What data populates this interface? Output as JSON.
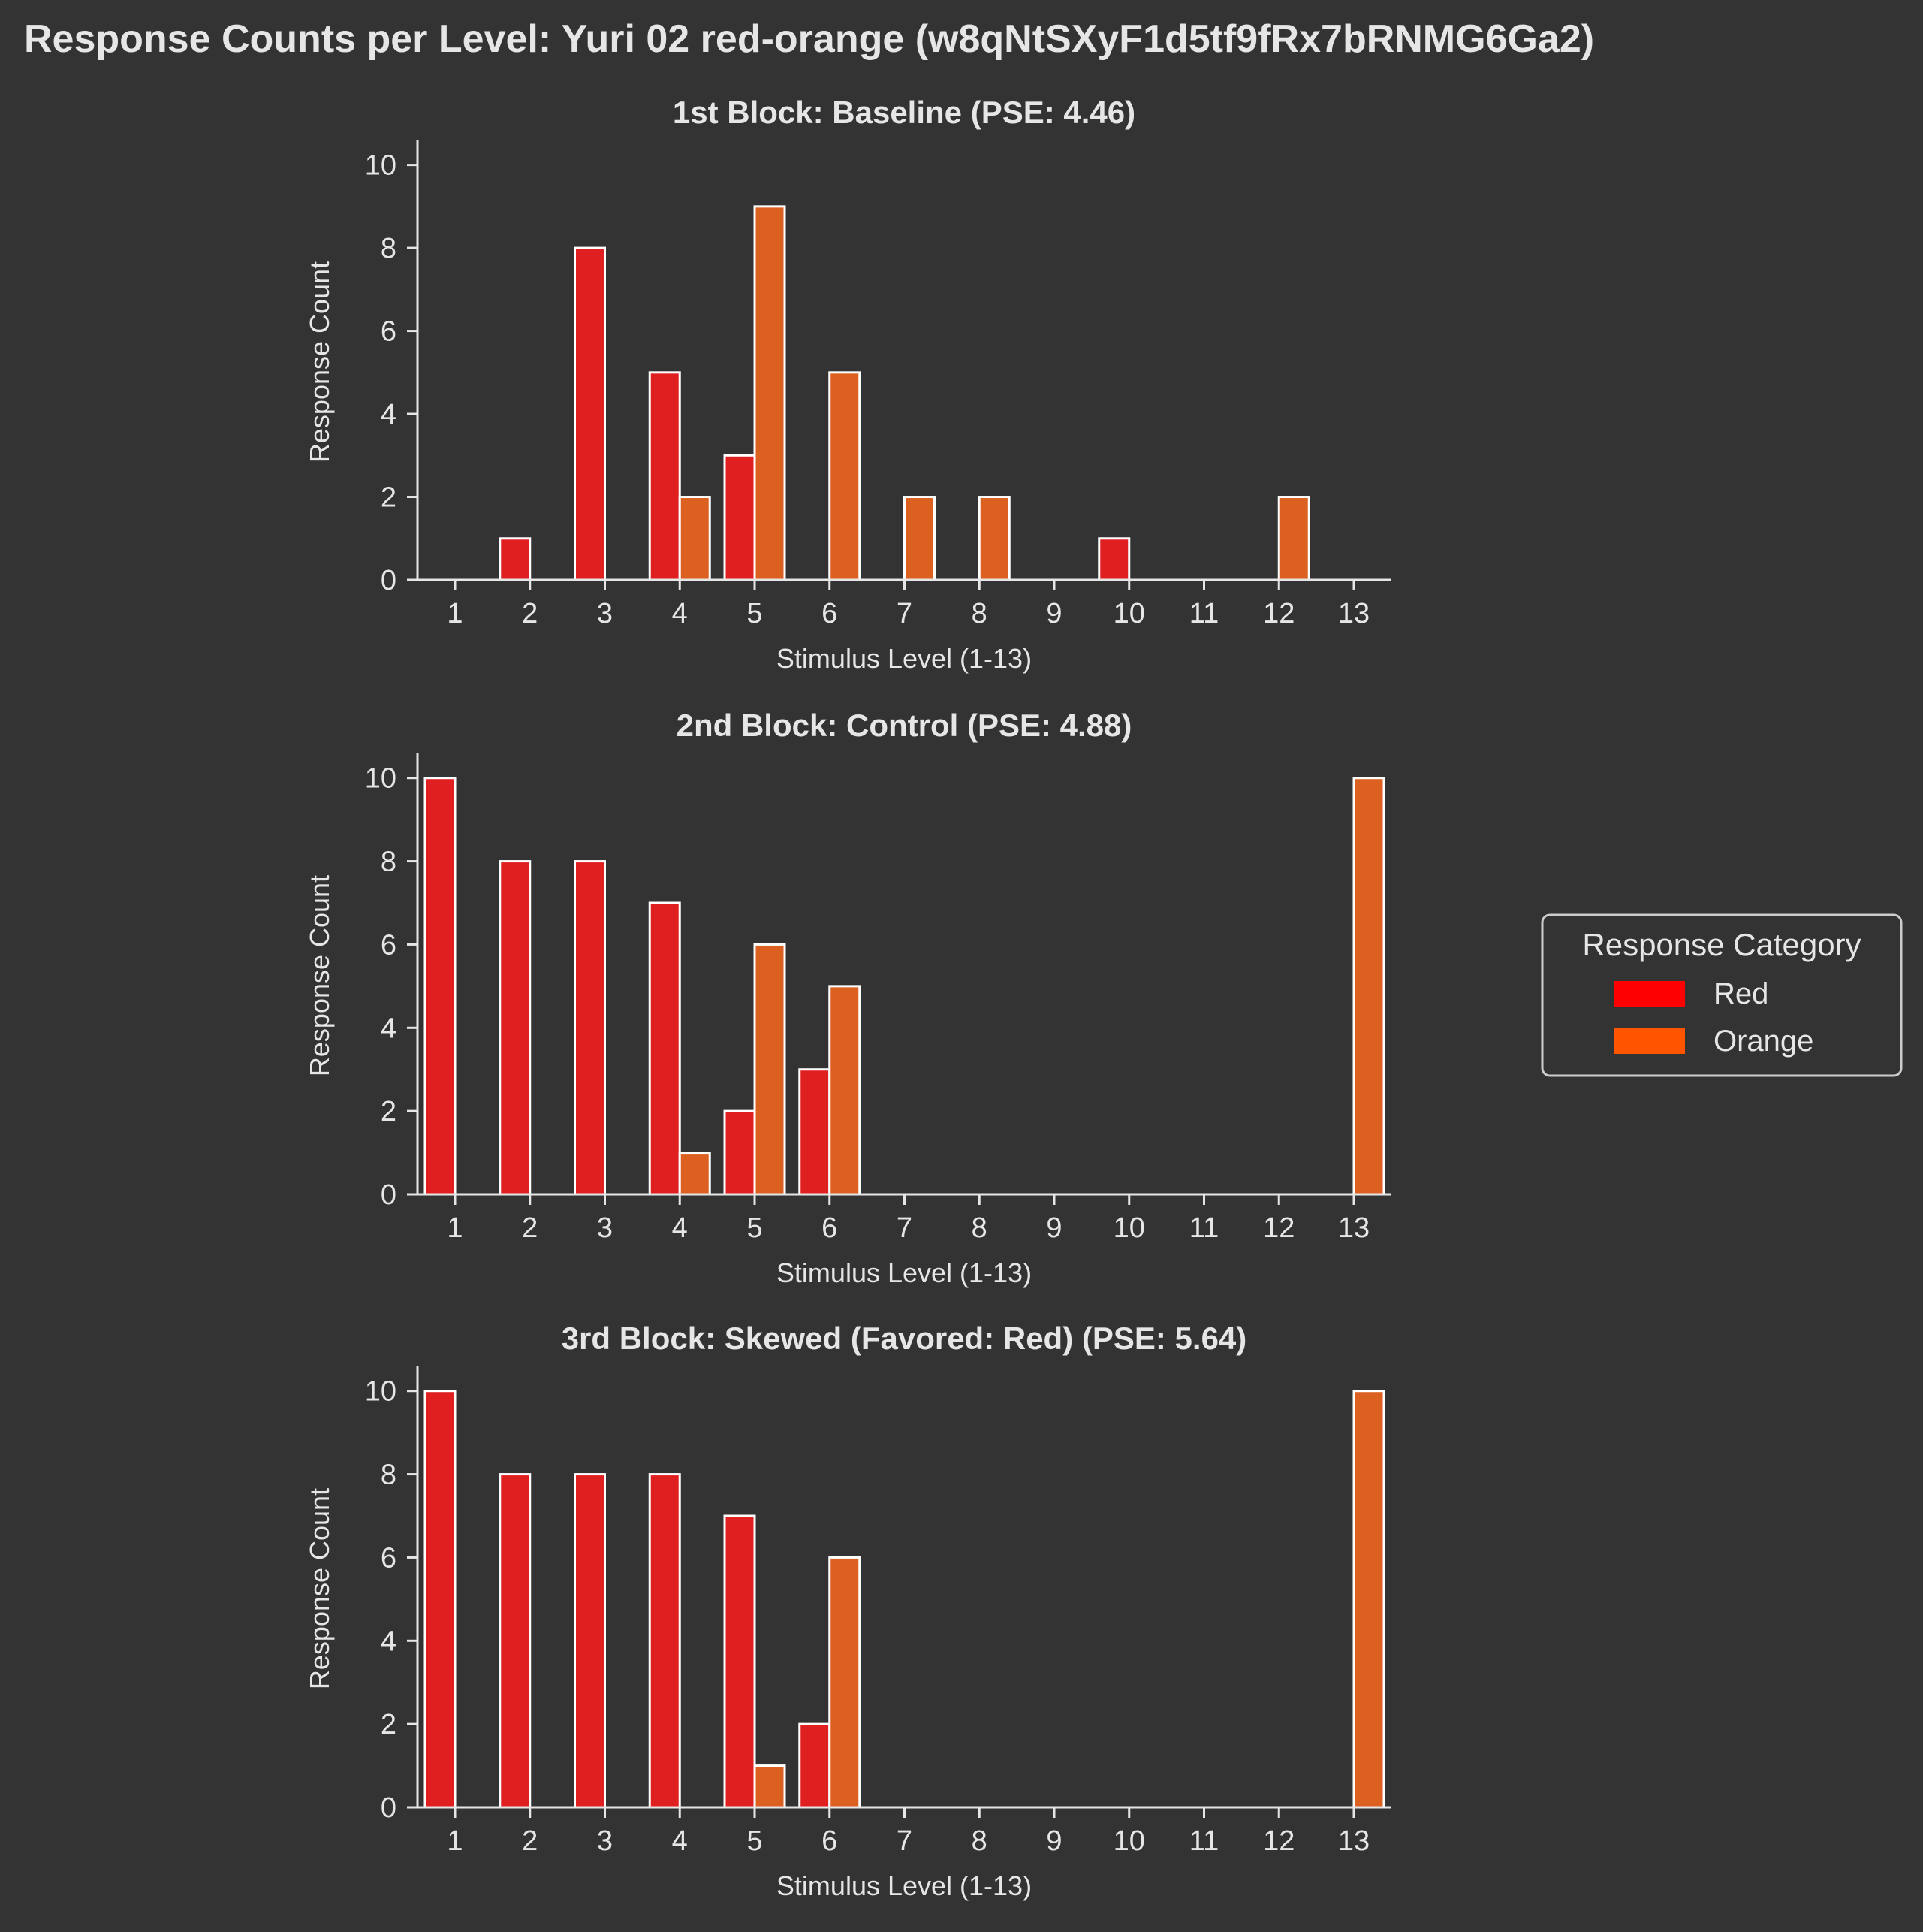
{
  "figure": {
    "title": "Response Counts per Level: Yuri 02 red-orange (w8qNtSXyF1d5tf9fRx7bRNMG6Ga2)"
  },
  "colors": {
    "background": "#333333",
    "text": "#e6e6e6",
    "red_bar": "#e02020",
    "orange_bar": "#dc6020",
    "red_legend": "#ff0000",
    "orange_legend": "#ff5500",
    "bar_edge": "#ffffff"
  },
  "legend": {
    "title": "Response Category",
    "placement": "center-right",
    "items": [
      {
        "label": "Red",
        "color": "#ff0000"
      },
      {
        "label": "Orange",
        "color": "#ff5500"
      }
    ]
  },
  "chart_data": [
    {
      "type": "bar",
      "title": "1st Block: Baseline (PSE: 4.46)",
      "xlabel": "Stimulus Level (1-13)",
      "ylabel": "Response Count",
      "categories": [
        "1",
        "2",
        "3",
        "4",
        "5",
        "6",
        "7",
        "8",
        "9",
        "10",
        "11",
        "12",
        "13"
      ],
      "yticks": [
        "0",
        "2",
        "4",
        "6",
        "8",
        "10"
      ],
      "ylim": [
        0,
        10.5
      ],
      "grid": false,
      "series": [
        {
          "name": "Red",
          "values": [
            0,
            1,
            8,
            5,
            3,
            0,
            0,
            0,
            0,
            1,
            0,
            0,
            0
          ]
        },
        {
          "name": "Orange",
          "values": [
            0,
            0,
            0,
            2,
            9,
            5,
            2,
            2,
            0,
            0,
            0,
            2,
            0
          ]
        }
      ]
    },
    {
      "type": "bar",
      "title": "2nd Block: Control (PSE: 4.88)",
      "xlabel": "Stimulus Level (1-13)",
      "ylabel": "Response Count",
      "categories": [
        "1",
        "2",
        "3",
        "4",
        "5",
        "6",
        "7",
        "8",
        "9",
        "10",
        "11",
        "12",
        "13"
      ],
      "yticks": [
        "0",
        "2",
        "4",
        "6",
        "8",
        "10"
      ],
      "ylim": [
        0,
        10.5
      ],
      "grid": false,
      "series": [
        {
          "name": "Red",
          "values": [
            10,
            8,
            8,
            7,
            2,
            3,
            0,
            0,
            0,
            0,
            0,
            0,
            0
          ]
        },
        {
          "name": "Orange",
          "values": [
            0,
            0,
            0,
            1,
            6,
            5,
            0,
            0,
            0,
            0,
            0,
            0,
            10
          ]
        }
      ]
    },
    {
      "type": "bar",
      "title": "3rd Block: Skewed (Favored: Red) (PSE: 5.64)",
      "xlabel": "Stimulus Level (1-13)",
      "ylabel": "Response Count",
      "categories": [
        "1",
        "2",
        "3",
        "4",
        "5",
        "6",
        "7",
        "8",
        "9",
        "10",
        "11",
        "12",
        "13"
      ],
      "yticks": [
        "0",
        "2",
        "4",
        "6",
        "8",
        "10"
      ],
      "ylim": [
        0,
        10.5
      ],
      "grid": false,
      "series": [
        {
          "name": "Red",
          "values": [
            10,
            8,
            8,
            8,
            7,
            2,
            0,
            0,
            0,
            0,
            0,
            0,
            0
          ]
        },
        {
          "name": "Orange",
          "values": [
            0,
            0,
            0,
            0,
            1,
            6,
            0,
            0,
            0,
            0,
            0,
            0,
            10
          ]
        }
      ]
    }
  ]
}
